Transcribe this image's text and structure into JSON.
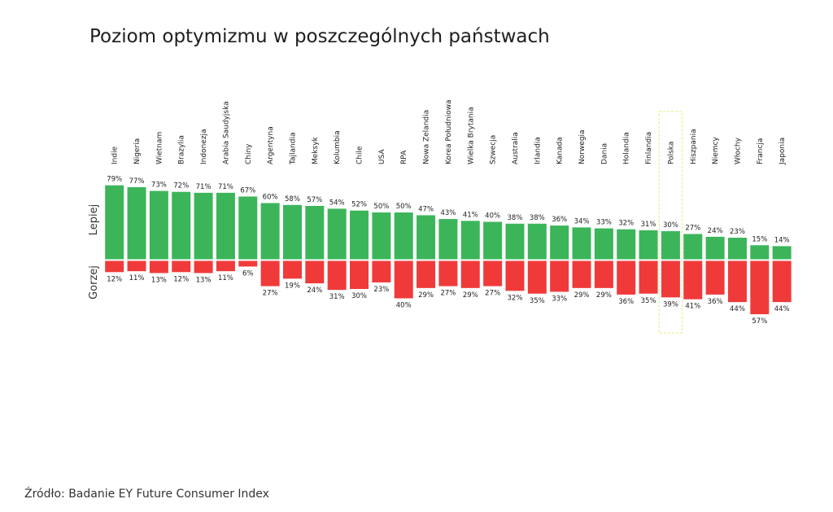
{
  "title": "Poziom optymizmu w poszczególnych państwach",
  "source": "Źródło: Badanie EY Future Consumer Index",
  "colors": {
    "positive": "#3cb55a",
    "negative": "#f03a3a",
    "highlight": "#e8e878"
  },
  "chart_data": {
    "type": "bar",
    "diverging": true,
    "ylabel_top": "Lepiej",
    "ylabel_bottom": "Gorzej",
    "highlight_category": "Polska",
    "categories": [
      "Indie",
      "Nigeria",
      "Wietnam",
      "Brazylia",
      "Indonezja",
      "Arabia Saudyjska",
      "Chiny",
      "Argentyna",
      "Tajlandia",
      "Meksyk",
      "Kolumbia",
      "Chile",
      "USA",
      "RPA",
      "Nowa Zelandia",
      "Korea Południowa",
      "Wielka Brytania",
      "Szwecja",
      "Australia",
      "Irlandia",
      "Kanada",
      "Norwegia",
      "Dania",
      "Holandia",
      "Finlandia",
      "Polska",
      "Hiszpania",
      "Niemcy",
      "Włochy",
      "Francja",
      "Japonia"
    ],
    "series": [
      {
        "name": "Lepiej",
        "values": [
          79,
          77,
          73,
          72,
          71,
          71,
          67,
          60,
          58,
          57,
          54,
          52,
          50,
          50,
          47,
          43,
          41,
          40,
          38,
          38,
          36,
          34,
          33,
          32,
          31,
          30,
          27,
          24,
          23,
          15,
          14
        ],
        "labels": [
          "79%",
          "77%",
          "73%",
          "72%",
          "71%",
          "71%",
          "67%",
          "60%",
          "58%",
          "57%",
          "54%",
          "52%",
          "50%",
          "50%",
          "47%",
          "43%",
          "41%",
          "40%",
          "38%",
          "38%",
          "36%",
          "34%",
          "33%",
          "32%",
          "31%",
          "30%",
          "27%",
          "24%",
          "23%",
          "15%",
          "14%"
        ]
      },
      {
        "name": "Gorzej",
        "values": [
          12,
          11,
          13,
          12,
          13,
          11,
          6,
          27,
          19,
          24,
          31,
          30,
          23,
          40,
          29,
          27,
          29,
          27,
          32,
          35,
          33,
          29,
          29,
          36,
          35,
          39,
          41,
          36,
          44,
          57,
          44
        ],
        "labels": [
          "12%",
          "11%",
          "13%",
          "12%",
          "13%",
          "11%",
          "6%",
          "27%",
          "19%",
          "24%",
          "31%",
          "30%",
          "23%",
          "40%",
          "29%",
          "27%",
          "29%",
          "27%",
          "32%",
          "35%",
          "33%",
          "29%",
          "29%",
          "36%",
          "35%",
          "39%",
          "41%",
          "36%",
          "44%",
          "57%",
          "44%"
        ]
      }
    ]
  }
}
